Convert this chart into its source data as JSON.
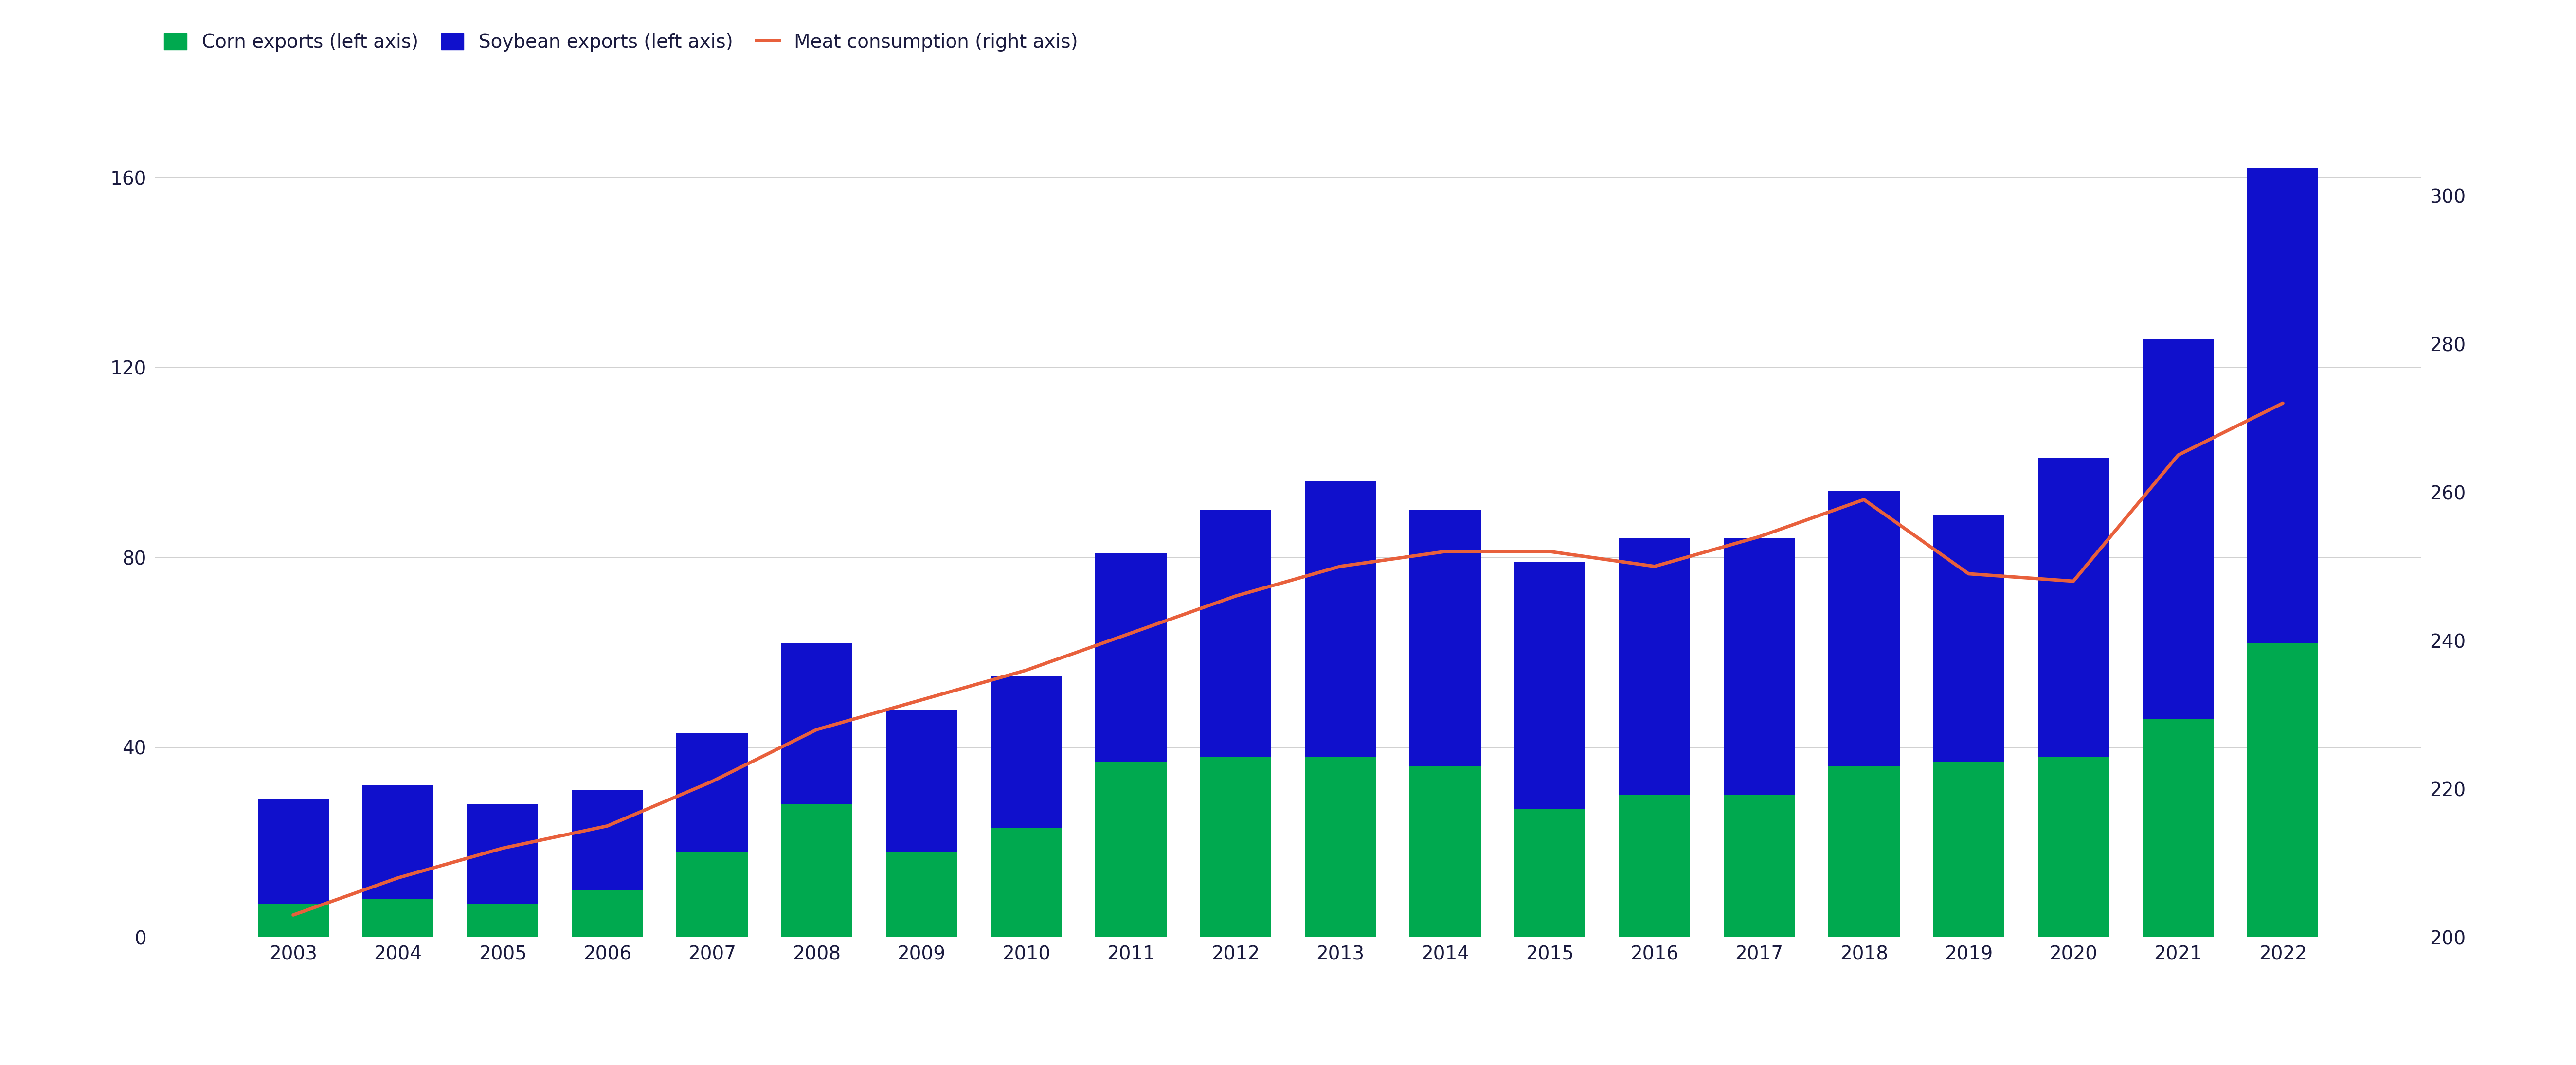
{
  "years": [
    2003,
    2004,
    2005,
    2006,
    2007,
    2008,
    2009,
    2010,
    2011,
    2012,
    2013,
    2014,
    2015,
    2016,
    2017,
    2018,
    2019,
    2020,
    2021,
    2022
  ],
  "corn_exports": [
    7,
    8,
    7,
    10,
    18,
    28,
    18,
    23,
    37,
    38,
    38,
    36,
    27,
    30,
    30,
    36,
    37,
    38,
    46,
    62
  ],
  "soybean_exports": [
    22,
    24,
    21,
    21,
    25,
    34,
    30,
    32,
    44,
    52,
    58,
    54,
    52,
    54,
    54,
    58,
    52,
    63,
    80,
    100
  ],
  "meat_consumption": [
    203,
    208,
    212,
    215,
    221,
    228,
    232,
    236,
    241,
    246,
    250,
    252,
    252,
    250,
    254,
    259,
    249,
    248,
    265,
    272
  ],
  "corn_color": "#00A94F",
  "soybean_color": "#1010CC",
  "meat_color": "#E8603C",
  "background_color": "#FFFFFF",
  "left_ylim": [
    0,
    175
  ],
  "left_yticks": [
    0,
    40,
    80,
    120,
    160
  ],
  "right_ylim": [
    200,
    312
  ],
  "right_yticks": [
    200,
    220,
    240,
    260,
    280,
    300
  ],
  "grid_color": "#C8C8C8",
  "text_color": "#1A1A3E",
  "legend_labels": [
    "Corn exports (left axis)",
    "Soybean exports (left axis)",
    "Meat consumption (right axis)"
  ],
  "legend_fontsize": 28,
  "tick_fontsize": 28,
  "bar_width": 0.68,
  "line_width": 5.0
}
